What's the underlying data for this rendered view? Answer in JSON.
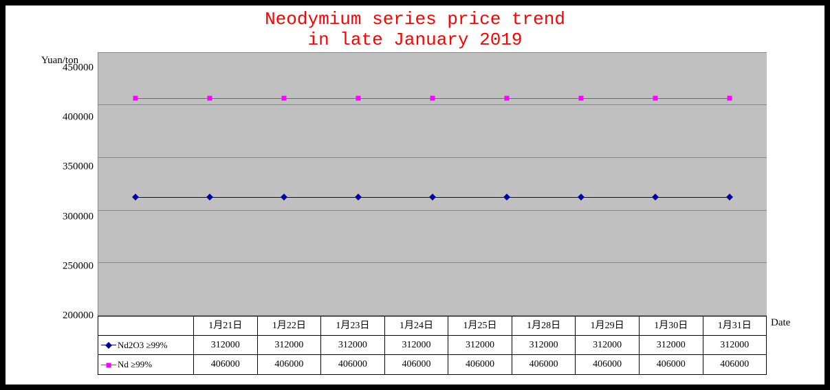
{
  "chart": {
    "title_line1": "Neodymium series price trend",
    "title_line2": "in late January 2019",
    "title_color": "#ff0000",
    "title_fontsize": 26,
    "y_axis_label": "Yuan/ton",
    "x_axis_label": "Date",
    "background_color": "#c0c0c0",
    "grid_color": "#888888",
    "ylim": [
      200000,
      450000
    ],
    "yticks": [
      200000,
      250000,
      300000,
      350000,
      400000,
      450000
    ],
    "categories": [
      "1月21日",
      "1月22日",
      "1月23日",
      "1月24日",
      "1月25日",
      "1月28日",
      "1月29日",
      "1月30日",
      "1月31日"
    ],
    "series": [
      {
        "name": "Nd2O3 ≥99%",
        "color": "#000099",
        "marker": "diamond",
        "values": [
          312000,
          312000,
          312000,
          312000,
          312000,
          312000,
          312000,
          312000,
          312000
        ]
      },
      {
        "name": "Nd ≥99%",
        "color": "#ff00ff",
        "marker": "square",
        "values": [
          406000,
          406000,
          406000,
          406000,
          406000,
          406000,
          406000,
          406000,
          406000
        ]
      }
    ]
  }
}
